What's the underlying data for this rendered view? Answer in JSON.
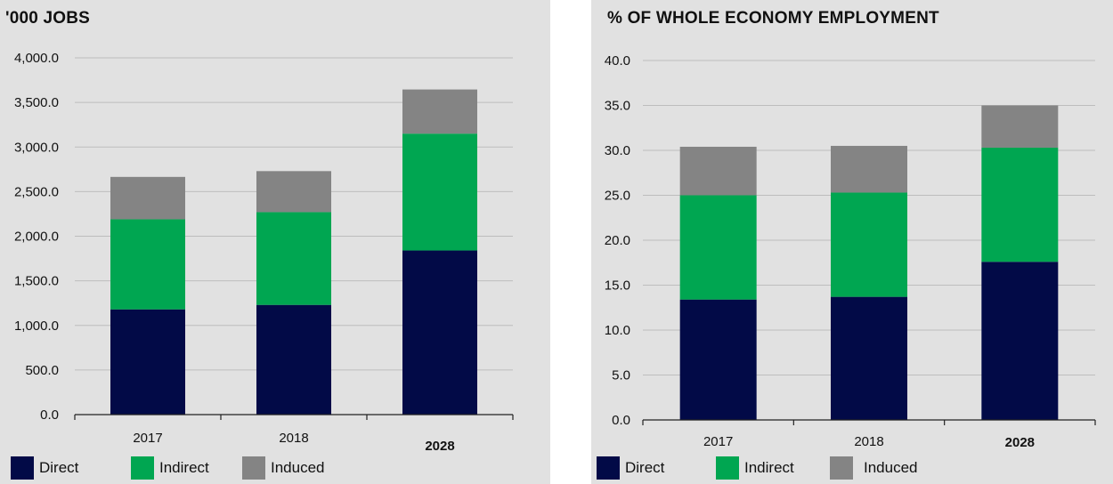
{
  "colors": {
    "direct": "#020a47",
    "indirect": "#00a651",
    "induced": "#848484",
    "grid": "#bdbdbd",
    "axis": "#222222"
  },
  "chart_data": [
    {
      "type": "bar",
      "stacked": true,
      "title": "'000 JOBS",
      "categories": [
        "2017",
        "2018",
        "2028"
      ],
      "bold_categories": [
        "2028"
      ],
      "series": [
        {
          "name": "Direct",
          "color_key": "direct",
          "values": [
            1180,
            1230,
            1840
          ]
        },
        {
          "name": "Indirect",
          "color_key": "indirect",
          "values": [
            1010,
            1040,
            1310
          ]
        },
        {
          "name": "Induced",
          "color_key": "induced",
          "values": [
            475,
            460,
            495
          ]
        }
      ],
      "ylim": [
        0,
        4000
      ],
      "yticks": [
        "0.0",
        "500.0",
        "1,000.0",
        "1,500.0",
        "2,000.0",
        "2,500.0",
        "3,000.0",
        "3,500.0",
        "4,000.0"
      ],
      "ytick_values": [
        0,
        500,
        1000,
        1500,
        2000,
        2500,
        3000,
        3500,
        4000
      ],
      "grid": true,
      "legend": "bottom-left"
    },
    {
      "type": "bar",
      "stacked": true,
      "title": "% OF WHOLE ECONOMY EMPLOYMENT",
      "categories": [
        "2017",
        "2018",
        "2028"
      ],
      "bold_categories": [
        "2028"
      ],
      "series": [
        {
          "name": "Direct",
          "color_key": "direct",
          "values": [
            13.4,
            13.7,
            17.6
          ]
        },
        {
          "name": "Indirect",
          "color_key": "indirect",
          "values": [
            11.6,
            11.6,
            12.7
          ]
        },
        {
          "name": "Induced",
          "color_key": "induced",
          "values": [
            5.4,
            5.2,
            4.7
          ]
        }
      ],
      "ylim": [
        0,
        40
      ],
      "yticks": [
        "0.0",
        "5.0",
        "10.0",
        "15.0",
        "20.0",
        "25.0",
        "30.0",
        "35.0",
        "40.0"
      ],
      "ytick_values": [
        0,
        5,
        10,
        15,
        20,
        25,
        30,
        35,
        40
      ],
      "grid": true,
      "legend": "bottom-left"
    }
  ]
}
